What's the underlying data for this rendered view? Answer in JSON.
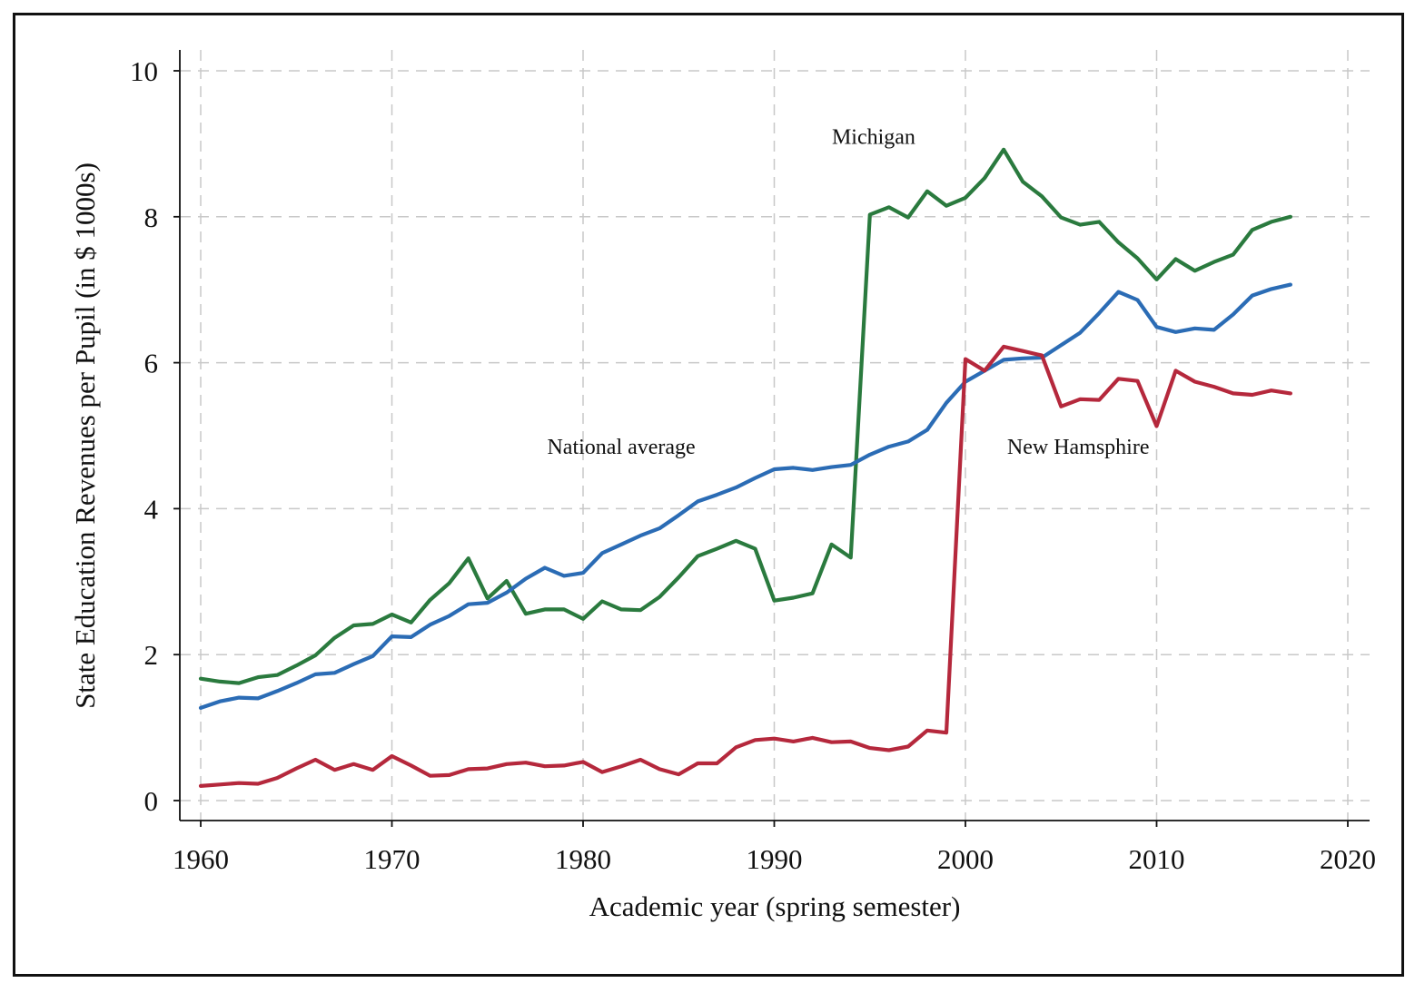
{
  "chart_data": {
    "type": "line",
    "title": "",
    "xlabel": "Academic year (spring semester)",
    "ylabel": "State Education Revenues per Pupil (in $ 1000s)",
    "xlim": [
      1959,
      2021
    ],
    "ylim": [
      -0.3,
      10.3
    ],
    "xticks": [
      1960,
      1970,
      1980,
      1990,
      2000,
      2010,
      2020
    ],
    "yticks": [
      0,
      2,
      4,
      6,
      8,
      10
    ],
    "grid": true,
    "x": [
      1960,
      1961,
      1962,
      1963,
      1964,
      1965,
      1966,
      1967,
      1968,
      1969,
      1970,
      1971,
      1972,
      1973,
      1974,
      1975,
      1976,
      1977,
      1978,
      1979,
      1980,
      1981,
      1982,
      1983,
      1984,
      1985,
      1986,
      1987,
      1988,
      1989,
      1990,
      1991,
      1992,
      1993,
      1994,
      1995,
      1996,
      1997,
      1998,
      1999,
      2000,
      2001,
      2002,
      2003,
      2004,
      2005,
      2006,
      2007,
      2008,
      2009,
      2010,
      2011,
      2012,
      2013,
      2014,
      2015,
      2016,
      2017
    ],
    "series": [
      {
        "name": "Michigan",
        "color": "#2a7a3e",
        "values": [
          1.67,
          1.63,
          1.61,
          1.69,
          1.72,
          1.85,
          1.99,
          2.23,
          2.4,
          2.42,
          2.55,
          2.44,
          2.75,
          2.98,
          3.32,
          2.77,
          3.01,
          2.56,
          2.62,
          2.62,
          2.49,
          2.73,
          2.62,
          2.61,
          2.79,
          3.06,
          3.35,
          3.45,
          3.56,
          3.45,
          2.74,
          2.78,
          2.84,
          3.51,
          3.33,
          8.03,
          8.13,
          7.99,
          8.35,
          8.15,
          8.26,
          8.53,
          8.92,
          8.48,
          8.28,
          7.99,
          7.89,
          7.93,
          7.65,
          7.43,
          7.14,
          7.42,
          7.26,
          7.38,
          7.48,
          7.82,
          7.93,
          8.0
        ]
      },
      {
        "name": "National average",
        "color": "#2b6cb5",
        "values": [
          1.27,
          1.36,
          1.41,
          1.4,
          1.5,
          1.61,
          1.73,
          1.75,
          1.87,
          1.98,
          2.25,
          2.24,
          2.41,
          2.53,
          2.69,
          2.71,
          2.85,
          3.04,
          3.19,
          3.08,
          3.12,
          3.39,
          3.51,
          3.63,
          3.73,
          3.91,
          4.1,
          4.19,
          4.29,
          4.42,
          4.54,
          4.56,
          4.53,
          4.57,
          4.6,
          4.74,
          4.85,
          4.92,
          5.08,
          5.45,
          5.74,
          5.89,
          6.04,
          6.06,
          6.07,
          6.24,
          6.41,
          6.68,
          6.97,
          6.86,
          6.49,
          6.42,
          6.47,
          6.45,
          6.66,
          6.92,
          7.01,
          7.07
        ]
      },
      {
        "name": "New Hamsphire",
        "color": "#b5283c",
        "values": [
          0.2,
          0.22,
          0.24,
          0.23,
          0.31,
          0.44,
          0.56,
          0.42,
          0.5,
          0.42,
          0.61,
          0.48,
          0.34,
          0.35,
          0.43,
          0.44,
          0.5,
          0.52,
          0.47,
          0.48,
          0.53,
          0.39,
          0.47,
          0.56,
          0.43,
          0.36,
          0.51,
          0.51,
          0.73,
          0.83,
          0.85,
          0.81,
          0.86,
          0.8,
          0.81,
          0.72,
          0.69,
          0.74,
          0.96,
          0.93,
          6.05,
          5.89,
          6.22,
          6.16,
          6.1,
          5.4,
          5.5,
          5.49,
          5.78,
          5.75,
          5.13,
          5.89,
          5.74,
          5.67,
          5.58,
          5.56,
          5.62,
          5.58
        ]
      }
    ],
    "annotations": [
      {
        "text": "Michigan",
        "x": 1995.2,
        "y": 9.0
      },
      {
        "text": "National average",
        "x": 1982.0,
        "y": 4.75
      },
      {
        "text": "New Hamsphire",
        "x": 2005.9,
        "y": 4.75
      }
    ]
  }
}
